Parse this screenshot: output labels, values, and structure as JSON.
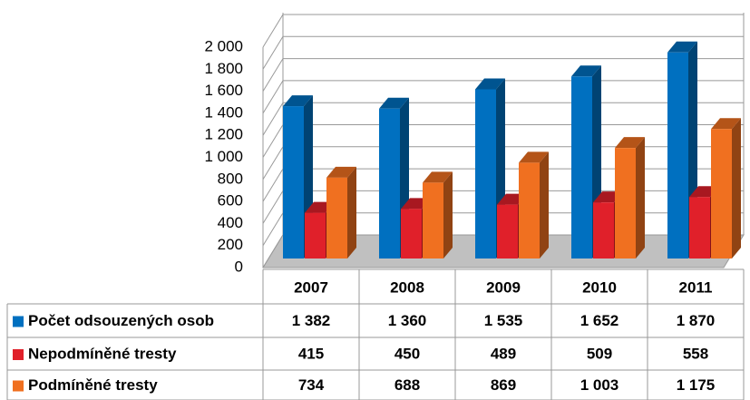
{
  "chart_data": {
    "type": "bar",
    "categories": [
      "2007",
      "2008",
      "2009",
      "2010",
      "2011"
    ],
    "series": [
      {
        "name": "Počet odsouzených osob",
        "color": "#0070c0",
        "values": [
          1382,
          1360,
          1535,
          1652,
          1870
        ],
        "value_labels": [
          "1 382",
          "1 360",
          "1 535",
          "1 652",
          "1 870"
        ]
      },
      {
        "name": "Nepodmíněné tresty",
        "color": "#e0202a",
        "values": [
          415,
          450,
          489,
          509,
          558
        ],
        "value_labels": [
          "415",
          "450",
          "489",
          "509",
          "558"
        ]
      },
      {
        "name": "Podmíněné tresty",
        "color": "#f07020",
        "values": [
          734,
          688,
          869,
          1003,
          1175
        ],
        "value_labels": [
          "734",
          "688",
          "869",
          "1 003",
          "1 175"
        ]
      }
    ],
    "ylim": [
      0,
      2000
    ],
    "yticks": [
      0,
      200,
      400,
      600,
      800,
      {
        "value": 1000,
        "label": "1 000"
      },
      {
        "value": 1200,
        "label": "1 200"
      },
      {
        "value": 1400,
        "label": "1 400"
      },
      {
        "value": 1600,
        "label": "1 600"
      },
      {
        "value": 1800,
        "label": "1 800"
      },
      {
        "value": 2000,
        "label": "2 000"
      }
    ],
    "grid": true
  }
}
